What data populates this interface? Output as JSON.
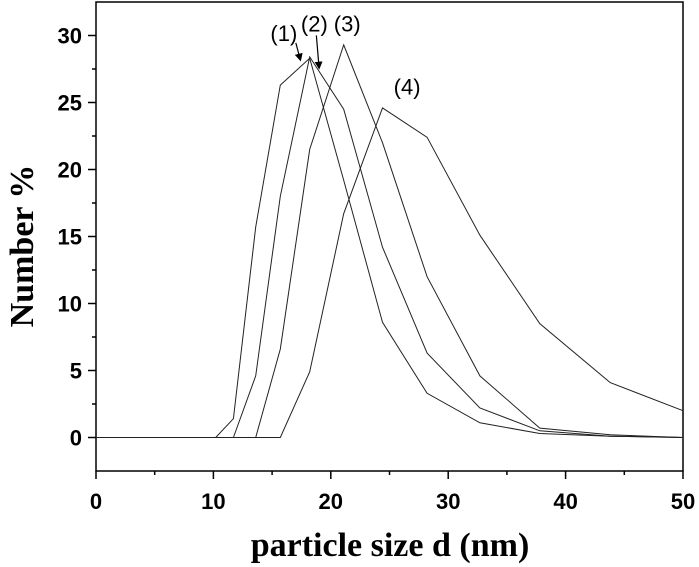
{
  "chart_data": {
    "type": "line",
    "xlabel": "particle size d (nm)",
    "ylabel": "Number %",
    "xlim": [
      0,
      50
    ],
    "ylim": [
      -2.5,
      32.5
    ],
    "xticks": [
      0,
      10,
      20,
      30,
      40,
      50
    ],
    "yticks": [
      0,
      5,
      10,
      15,
      20,
      25,
      30
    ],
    "grid": false,
    "colors": {
      "line": "#222222",
      "axis": "#000000"
    },
    "series": [
      {
        "name": "(1)",
        "x": [
          0,
          10.2,
          11.7,
          13.6,
          15.7,
          18.2,
          21.1,
          24.4,
          28.2,
          32.7,
          37.8,
          43.8,
          50
        ],
        "y": [
          0,
          0,
          1.4,
          15.7,
          26.3,
          28.3,
          19.2,
          8.6,
          3.3,
          1.1,
          0.3,
          0.1,
          0
        ]
      },
      {
        "name": "(2)",
        "x": [
          0,
          11.7,
          13.6,
          15.7,
          18.2,
          21.1,
          24.4,
          28.2,
          32.7,
          37.8,
          43.8,
          50
        ],
        "y": [
          0,
          0,
          4.6,
          18.0,
          28.4,
          24.5,
          14.2,
          6.3,
          2.2,
          0.5,
          0.1,
          0
        ]
      },
      {
        "name": "(3)",
        "x": [
          0,
          13.6,
          15.7,
          18.2,
          21.1,
          24.4,
          28.2,
          32.7,
          37.8,
          43.8,
          50
        ],
        "y": [
          0,
          0,
          6.6,
          21.5,
          29.3,
          22.0,
          12.0,
          4.6,
          0.7,
          0.2,
          0
        ]
      },
      {
        "name": "(4)",
        "x": [
          0,
          15.7,
          18.2,
          21.1,
          24.4,
          28.2,
          32.7,
          37.8,
          43.8,
          50
        ],
        "y": [
          0,
          0,
          4.9,
          16.7,
          24.6,
          22.4,
          15.1,
          8.5,
          4.1,
          2.0
        ]
      }
    ],
    "annotations": [
      {
        "text": "(1)",
        "x": 16.0,
        "y": 29.6,
        "arrow_to": [
          17.4,
          28.2
        ]
      },
      {
        "text": "(2)",
        "x": 18.6,
        "y": 30.3,
        "arrow_to": [
          19.0,
          27.6
        ]
      },
      {
        "text": "(3)",
        "x": 21.4,
        "y": 30.3
      },
      {
        "text": "(4)",
        "x": 26.5,
        "y": 25.6
      }
    ]
  }
}
